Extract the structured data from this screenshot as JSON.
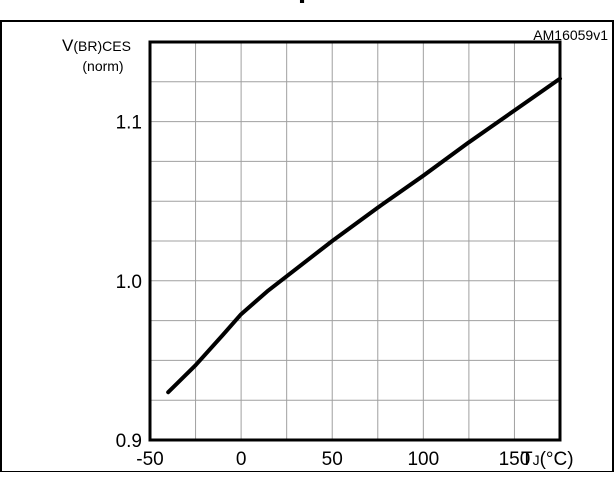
{
  "header_fragment": "p",
  "figure_id": "AM16059v1",
  "colors": {
    "curve": "#000000",
    "grid": "#a0a0a0",
    "frame": "#000000",
    "background": "#ffffff"
  },
  "chart_data": {
    "type": "line",
    "title": "",
    "ylabel": {
      "main": "V",
      "subscript": "(BR)CES",
      "second_line": "(norm)"
    },
    "xlabel": {
      "main": "T",
      "subscript": "J",
      "unit": "(°C)"
    },
    "xlim": [
      -50,
      175
    ],
    "ylim": [
      0.9,
      1.15
    ],
    "x_ticks": [
      -50,
      0,
      50,
      100,
      150
    ],
    "x_tick_labels": [
      "-50",
      "0",
      "50",
      "100",
      "150"
    ],
    "y_ticks": [
      0.9,
      1.0,
      1.1
    ],
    "y_tick_labels": [
      "0.9",
      "1.0",
      "1.1"
    ],
    "x_grid_step": 25,
    "y_grid_step": 0.025,
    "grid": true,
    "legend": "none",
    "series": [
      {
        "x": [
          -40,
          -25,
          -10,
          0,
          15,
          50,
          75,
          100,
          125,
          150,
          175
        ],
        "y": [
          0.93,
          0.947,
          0.966,
          0.979,
          0.994,
          1.025,
          1.046,
          1.066,
          1.087,
          1.107,
          1.127
        ]
      }
    ]
  }
}
